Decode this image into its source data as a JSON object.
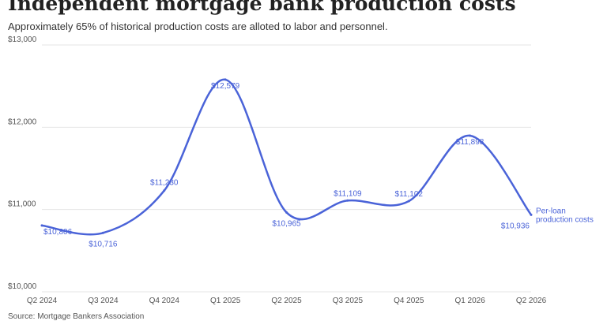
{
  "header": {
    "title": "Independent mortgage bank production costs",
    "subtitle": "Approximately 65% of historical production costs are alloted to labor and personnel.",
    "source": "Source: Mortgage Bankers Association"
  },
  "colors": {
    "series": "#4a63d8",
    "grid": "#e4e4e4",
    "axis_text": "#555555",
    "title": "#222222"
  },
  "chart_data": {
    "type": "line",
    "categories": [
      "Q2 2024",
      "Q3 2024",
      "Q4 2024",
      "Q1 2025",
      "Q2 2025",
      "Q3 2025",
      "Q4 2025",
      "Q1 2026",
      "Q2 2026"
    ],
    "series": [
      {
        "name": "Per-loan production costs",
        "values": [
          10806,
          10716,
          11230,
          12579,
          10965,
          11109,
          11102,
          11898,
          10936
        ],
        "labels": [
          "$10,806",
          "$10,716",
          "$11,230",
          "$12,579",
          "$10,965",
          "$11,109",
          "$11,102",
          "$11,898",
          "$10,936"
        ]
      }
    ],
    "end_label": [
      "Per-loan",
      "production costs"
    ],
    "ylim": [
      10000,
      13000
    ],
    "yticks": [
      10000,
      11000,
      12000,
      13000
    ],
    "ytick_labels": [
      "$10,000",
      "$11,000",
      "$12,000",
      "$13,000"
    ],
    "grid": true,
    "legend": "inline-right",
    "title": "Independent mortgage bank production costs",
    "xlabel": "",
    "ylabel": ""
  }
}
